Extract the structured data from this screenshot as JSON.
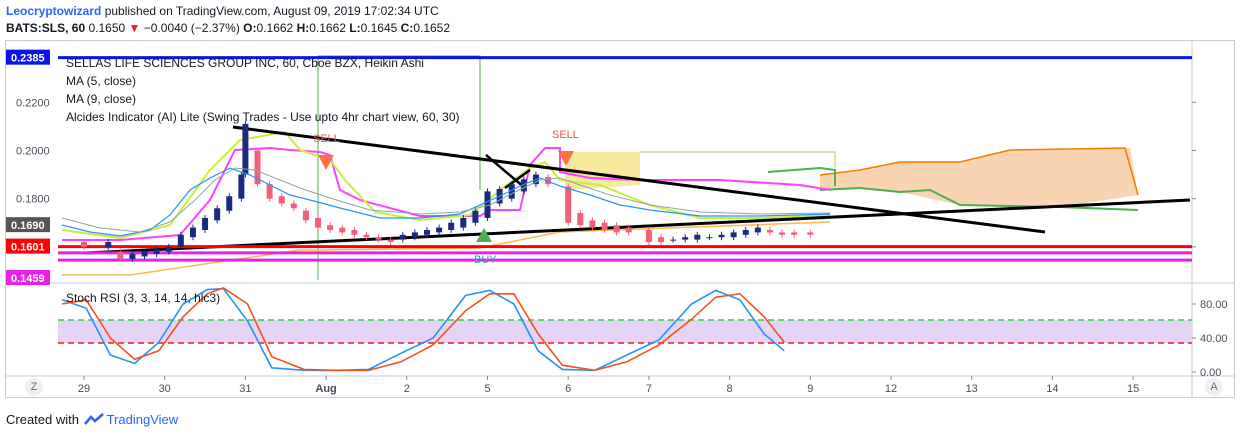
{
  "header": {
    "author": "Leocryptowizard",
    "published_text": " published on TradingView.com, August 09, 2019 17:02:34 UTC",
    "symbol": "BATS:SLS, 60",
    "last": "0.1650",
    "arrow": "▼",
    "change": "−0.0040 (−2.37%)",
    "o_label": "O:",
    "o_value": "0.1662",
    "h_label": "H:",
    "h_value": "0.1662",
    "l_label": "L:",
    "l_value": "0.1645",
    "c_label": "C:",
    "c_value": "0.1652"
  },
  "legend": {
    "title": "SELLAS LIFE SCIENCES GROUP INC, 60, Cboe BZX, Heikin Ashi",
    "ma1": "MA (5, close)",
    "ma2": "MA (9, close)",
    "indicator": "Alcides Indicator (AI) Lite (Swing Trades - Use upto 4hr chart view, 60, 30)"
  },
  "stoch_label": "Stoch RSI (3, 3, 14, 14, hlc3)",
  "signals": {
    "sell": "SELL",
    "buy": "BUY"
  },
  "corner": {
    "z": "Z",
    "a": "A"
  },
  "footer": {
    "created": "Created with ",
    "brand": "TradingView"
  },
  "colors": {
    "up_candle": "#1a2a80",
    "down_candle": "#f0607a",
    "level_blue": "#0a14e6",
    "level_red": "#ff0000",
    "level_magenta": "#e620e6",
    "ma5": "#2196f3",
    "ma9": "#ff4081",
    "cloud": "#f7c9a0",
    "stoch_k": "#2196f3",
    "stoch_d": "#f4511e"
  },
  "chart_data": [
    {
      "type": "candlestick",
      "title": "SELLAS LIFE SCIENCES GROUP INC, 60, Cboe BZX, Heikin Ashi",
      "x_ticks": [
        "29",
        "30",
        "31",
        "Aug",
        "2",
        "5",
        "6",
        "7",
        "8",
        "9",
        "12",
        "13",
        "14",
        "15"
      ],
      "y_ticks": [
        0.22,
        0.2,
        0.18,
        0.16
      ],
      "y_tick_labels": [
        "0.2200",
        "0.2000",
        "0.1800",
        "0.1600"
      ],
      "ylim": [
        0.145,
        0.245
      ],
      "price_labels": [
        {
          "value": 0.2385,
          "label": "0.2385",
          "color": "#0a14e6"
        },
        {
          "value": 0.169,
          "label": "0.1690",
          "color": "#555555"
        },
        {
          "value": 0.1601,
          "label": "0.1601",
          "color": "#ff0000"
        },
        {
          "value": 0.1459,
          "label": "0.1459",
          "color": "#e620e6"
        }
      ],
      "horizontal_levels": [
        0.2385,
        0.1601,
        0.1575,
        0.1545
      ],
      "candles": [
        {
          "x": 0.0,
          "o": 0.162,
          "c": 0.16
        },
        {
          "x": 0.3,
          "o": 0.16,
          "c": 0.162
        },
        {
          "x": 0.45,
          "o": 0.158,
          "c": 0.155
        },
        {
          "x": 0.6,
          "o": 0.155,
          "c": 0.157
        },
        {
          "x": 0.75,
          "o": 0.156,
          "c": 0.158
        },
        {
          "x": 0.9,
          "o": 0.157,
          "c": 0.159
        },
        {
          "x": 1.05,
          "o": 0.158,
          "c": 0.16
        },
        {
          "x": 1.2,
          "o": 0.16,
          "c": 0.165
        },
        {
          "x": 1.35,
          "o": 0.164,
          "c": 0.168
        },
        {
          "x": 1.5,
          "o": 0.167,
          "c": 0.172
        },
        {
          "x": 1.65,
          "o": 0.171,
          "c": 0.176
        },
        {
          "x": 1.8,
          "o": 0.175,
          "c": 0.181
        },
        {
          "x": 1.95,
          "o": 0.18,
          "c": 0.19
        },
        {
          "x": 2.0,
          "o": 0.19,
          "c": 0.211
        },
        {
          "x": 2.15,
          "o": 0.2,
          "c": 0.186
        },
        {
          "x": 2.3,
          "o": 0.186,
          "c": 0.18
        },
        {
          "x": 2.45,
          "o": 0.181,
          "c": 0.178
        },
        {
          "x": 2.6,
          "o": 0.178,
          "c": 0.176
        },
        {
          "x": 2.75,
          "o": 0.175,
          "c": 0.171
        },
        {
          "x": 2.9,
          "o": 0.172,
          "c": 0.168
        },
        {
          "x": 3.05,
          "o": 0.169,
          "c": 0.167
        },
        {
          "x": 3.2,
          "o": 0.168,
          "c": 0.166
        },
        {
          "x": 3.35,
          "o": 0.167,
          "c": 0.165
        },
        {
          "x": 3.5,
          "o": 0.165,
          "c": 0.164
        },
        {
          "x": 3.65,
          "o": 0.164,
          "c": 0.163
        },
        {
          "x": 3.8,
          "o": 0.163,
          "c": 0.162
        },
        {
          "x": 3.95,
          "o": 0.163,
          "c": 0.165
        },
        {
          "x": 4.1,
          "o": 0.164,
          "c": 0.166
        },
        {
          "x": 4.25,
          "o": 0.165,
          "c": 0.167
        },
        {
          "x": 4.4,
          "o": 0.166,
          "c": 0.168
        },
        {
          "x": 4.55,
          "o": 0.167,
          "c": 0.17
        },
        {
          "x": 4.7,
          "o": 0.168,
          "c": 0.172
        },
        {
          "x": 4.85,
          "o": 0.17,
          "c": 0.175
        },
        {
          "x": 5.0,
          "o": 0.172,
          "c": 0.183
        },
        {
          "x": 5.15,
          "o": 0.178,
          "c": 0.184
        },
        {
          "x": 5.3,
          "o": 0.18,
          "c": 0.186
        },
        {
          "x": 5.45,
          "o": 0.183,
          "c": 0.188
        },
        {
          "x": 5.6,
          "o": 0.186,
          "c": 0.19
        },
        {
          "x": 5.75,
          "o": 0.189,
          "c": 0.186
        },
        {
          "x": 6.0,
          "o": 0.185,
          "c": 0.17
        },
        {
          "x": 6.15,
          "o": 0.174,
          "c": 0.169
        },
        {
          "x": 6.3,
          "o": 0.171,
          "c": 0.168
        },
        {
          "x": 6.45,
          "o": 0.17,
          "c": 0.167
        },
        {
          "x": 6.6,
          "o": 0.169,
          "c": 0.166
        },
        {
          "x": 6.75,
          "o": 0.168,
          "c": 0.166
        },
        {
          "x": 7.0,
          "o": 0.167,
          "c": 0.162
        },
        {
          "x": 7.15,
          "o": 0.164,
          "c": 0.162
        },
        {
          "x": 7.3,
          "o": 0.163,
          "c": 0.163
        },
        {
          "x": 7.45,
          "o": 0.163,
          "c": 0.164
        },
        {
          "x": 7.6,
          "o": 0.163,
          "c": 0.165
        },
        {
          "x": 7.75,
          "o": 0.164,
          "c": 0.164
        },
        {
          "x": 7.9,
          "o": 0.164,
          "c": 0.165
        },
        {
          "x": 8.05,
          "o": 0.164,
          "c": 0.166
        },
        {
          "x": 8.2,
          "o": 0.165,
          "c": 0.167
        },
        {
          "x": 8.35,
          "o": 0.166,
          "c": 0.168
        },
        {
          "x": 8.5,
          "o": 0.167,
          "c": 0.166
        },
        {
          "x": 8.65,
          "o": 0.166,
          "c": 0.165
        },
        {
          "x": 8.8,
          "o": 0.166,
          "c": 0.165
        },
        {
          "x": 9.0,
          "o": 0.166,
          "c": 0.165
        }
      ]
    },
    {
      "type": "line",
      "title": "Stoch RSI (3, 3, 14, 14, hlc3)",
      "y_ticks": [
        80,
        40,
        0
      ],
      "y_tick_labels": [
        "80.00",
        "40.00",
        "0.00"
      ],
      "ylim": [
        0,
        100
      ],
      "bands": [
        60,
        30
      ],
      "series": [
        {
          "values_x": [
            0,
            0.3,
            0.6,
            0.9,
            1.2,
            1.5,
            1.8,
            2.0,
            2.3,
            2.6,
            3.0,
            3.4,
            3.8,
            4.2,
            4.6,
            5.0,
            5.3,
            5.6,
            5.9,
            6.2,
            6.6,
            7.0,
            7.4,
            7.8,
            8.1,
            8.4,
            8.7,
            8.95
          ],
          "values_y": [
            85,
            75,
            20,
            10,
            35,
            80,
            97,
            98,
            60,
            5,
            2,
            2,
            3,
            22,
            40,
            90,
            96,
            80,
            25,
            3,
            2,
            20,
            38,
            80,
            96,
            85,
            45,
            25
          ]
        },
        {
          "values_x": [
            0,
            0.3,
            0.6,
            0.9,
            1.2,
            1.5,
            1.8,
            2.0,
            2.3,
            2.6,
            3.0,
            3.4,
            3.8,
            4.2,
            4.6,
            5.0,
            5.3,
            5.6,
            5.9,
            6.2,
            6.6,
            7.0,
            7.4,
            7.8,
            8.1,
            8.4,
            8.7,
            8.95
          ],
          "values_y": [
            80,
            85,
            40,
            15,
            25,
            65,
            92,
            99,
            80,
            18,
            3,
            2,
            2,
            12,
            32,
            72,
            92,
            92,
            45,
            8,
            2,
            12,
            32,
            62,
            88,
            92,
            65,
            35
          ]
        }
      ]
    }
  ]
}
